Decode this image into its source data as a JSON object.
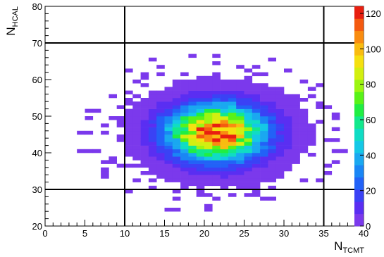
{
  "chart_data": {
    "type": "heatmap",
    "title": "",
    "xlabel": {
      "main": "N",
      "sub": "TCMT"
    },
    "ylabel": {
      "main": "N",
      "sub": "HCAL"
    },
    "xlim": [
      0,
      40
    ],
    "ylim": [
      20,
      80
    ],
    "x_ticks": [
      "0",
      "5",
      "10",
      "15",
      "20",
      "25",
      "30",
      "35",
      "40"
    ],
    "y_ticks": [
      "20",
      "30",
      "40",
      "50",
      "60",
      "70",
      "80"
    ],
    "z_ticks": [
      "0",
      "20",
      "40",
      "60",
      "80",
      "100",
      "120"
    ],
    "zlim": [
      0,
      124
    ],
    "bin_width_x": 1,
    "bin_width_y": 1,
    "palette": [
      "#7b39ec",
      "#5a2ef2",
      "#3a42f5",
      "#2262f7",
      "#1a86f5",
      "#1aa8f0",
      "#14c8e6",
      "#10dcc4",
      "#12e88c",
      "#20ee42",
      "#58f218",
      "#9cf512",
      "#d2ef10",
      "#f5e010",
      "#f9bc10",
      "#f98c10",
      "#f45a10",
      "#e81f10"
    ],
    "grid": false,
    "reference_lines": {
      "x": [
        10,
        35
      ],
      "y": [
        30,
        70
      ]
    },
    "center": [
      21.5,
      45.5
    ],
    "spread": [
      4.0,
      5.0
    ],
    "peak": 118
  }
}
